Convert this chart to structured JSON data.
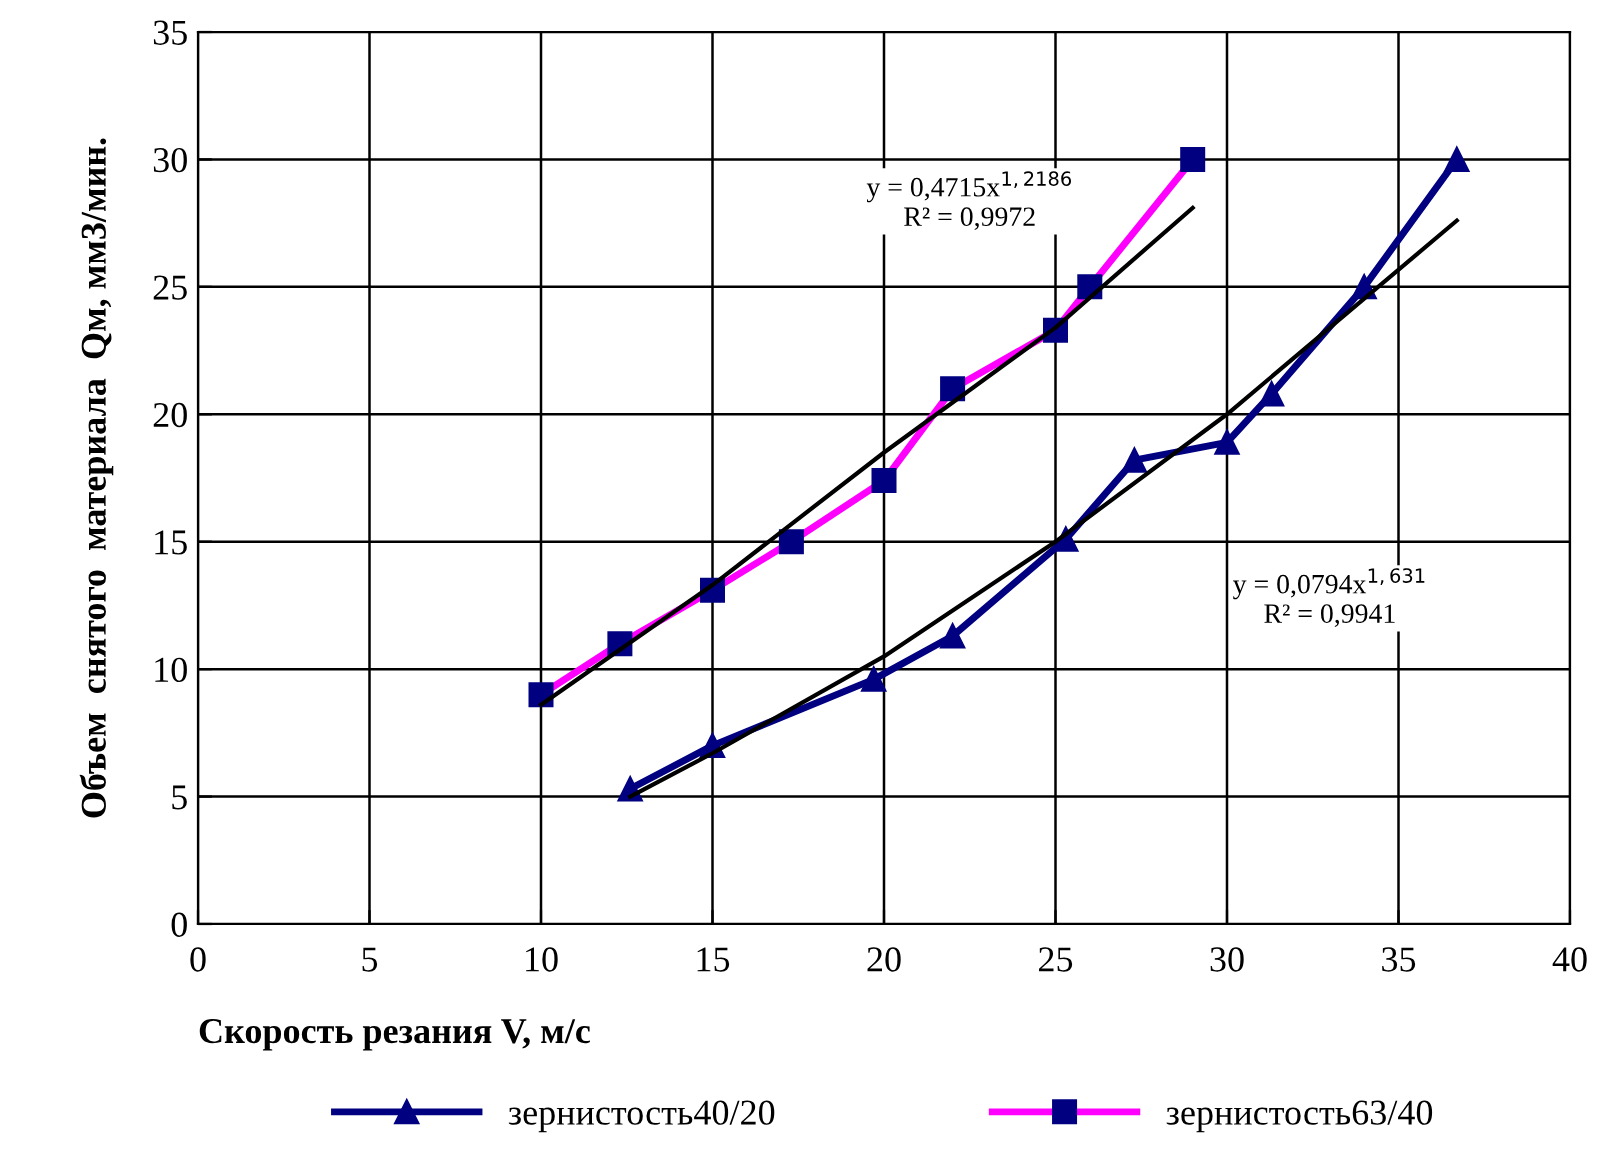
{
  "chart_data": {
    "type": "line",
    "xlabel": "Скорость резания V, м/с",
    "ylabel": "Объем  снятого  материала  Qм, мм3/мин.",
    "xlim": [
      0,
      40
    ],
    "xticks": [
      0,
      5,
      10,
      15,
      20,
      25,
      30,
      35,
      40
    ],
    "ylim": [
      0,
      35
    ],
    "yticks": [
      0,
      5,
      10,
      15,
      20,
      25,
      30,
      35
    ],
    "grid": true,
    "legend": "bottom",
    "series": [
      {
        "name": "зернистость40/20",
        "color": "#000080",
        "marker": "triangle",
        "x": [
          12.6,
          15,
          19.7,
          22,
          25.3,
          27.3,
          30,
          31.3,
          34,
          36.7
        ],
        "values": [
          5.3,
          7,
          9.6,
          11.3,
          15.1,
          18.2,
          18.9,
          20.8,
          25,
          30
        ]
      },
      {
        "name": "зернистость63/40",
        "color": "#ff00ff",
        "marker": "square",
        "x": [
          10,
          12.3,
          15,
          17.3,
          20,
          22,
          25,
          26,
          29
        ],
        "values": [
          9,
          11,
          13.1,
          15,
          17.4,
          21,
          23.3,
          25,
          30
        ]
      },
      {
        "color": "#000000",
        "marker": "none",
        "x": [
          10,
          15,
          20,
          25,
          29
        ],
        "values": [
          8.6,
          13.3,
          18.5,
          23.4,
          28.1
        ]
      },
      {
        "color": "#000000",
        "marker": "none",
        "x": [
          12.6,
          15,
          20,
          25,
          30,
          36.7
        ],
        "values": [
          5.0,
          6.7,
          10.5,
          15.0,
          20.0,
          27.6
        ]
      }
    ],
    "annotations": [
      "y = 0,4715x$^{1,2186}$\nR² = 0,9972",
      "y = 0,0794x$^{1,631}$\nR² = 0,9941"
    ]
  }
}
